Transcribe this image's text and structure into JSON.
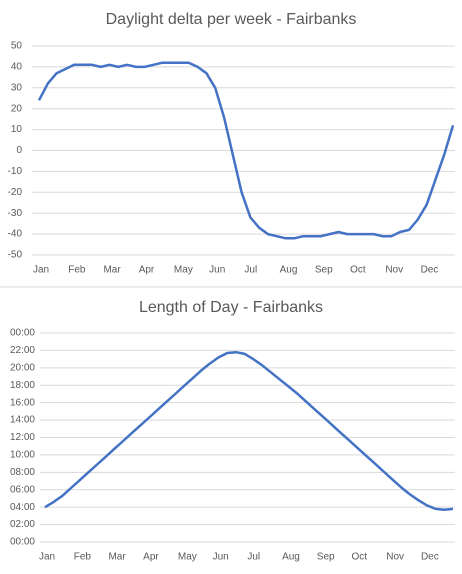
{
  "chart_data": [
    {
      "type": "line",
      "title": "Daylight delta per week - Fairbanks",
      "categories": [
        "Jan",
        null,
        null,
        null,
        "Feb",
        null,
        null,
        null,
        "Mar",
        null,
        null,
        null,
        "Apr",
        null,
        null,
        null,
        "May",
        null,
        null,
        null,
        "Jun",
        null,
        null,
        null,
        "Jul",
        null,
        null,
        null,
        "Aug",
        null,
        null,
        null,
        "Sep",
        null,
        null,
        null,
        "Oct",
        null,
        null,
        null,
        "Nov",
        null,
        null,
        null,
        "Dec",
        null,
        null,
        null
      ],
      "values": [
        24,
        32,
        37,
        39,
        41,
        41,
        41,
        40,
        41,
        40,
        41,
        40,
        40,
        41,
        42,
        42,
        42,
        42,
        40,
        37,
        30,
        16,
        -2,
        -20,
        -32,
        -37,
        -40,
        -41,
        -42,
        -42,
        -41,
        -41,
        -41,
        -40,
        -39,
        -40,
        -40,
        -40,
        -40,
        -41,
        -41,
        -39,
        -38,
        -33,
        -26,
        -14,
        -2,
        12
      ],
      "color": "#4472c4",
      "ylim": [
        -50,
        50
      ],
      "yticks": [
        -50,
        -40,
        -30,
        -20,
        -10,
        0,
        10,
        20,
        30,
        40,
        50
      ],
      "grid": true
    },
    {
      "type": "line",
      "title": "Length of Day - Fairbanks",
      "categories": [
        "Jan",
        null,
        null,
        null,
        "Feb",
        null,
        null,
        null,
        "Mar",
        null,
        null,
        null,
        "Apr",
        null,
        null,
        null,
        "May",
        null,
        null,
        null,
        "Jun",
        null,
        null,
        null,
        "Jul",
        null,
        null,
        null,
        "Aug",
        null,
        null,
        null,
        "Sep",
        null,
        null,
        null,
        "Oct",
        null,
        null,
        null,
        "Nov",
        null,
        null,
        null,
        "Dec",
        null,
        null,
        null
      ],
      "values": [
        4.0,
        4.6,
        5.3,
        6.2,
        7.1,
        8.0,
        8.9,
        9.8,
        10.7,
        11.6,
        12.5,
        13.4,
        14.3,
        15.2,
        16.1,
        17.0,
        17.9,
        18.8,
        19.7,
        20.5,
        21.2,
        21.7,
        21.8,
        21.6,
        21.0,
        20.3,
        19.5,
        18.7,
        17.9,
        17.1,
        16.2,
        15.3,
        14.4,
        13.5,
        12.6,
        11.7,
        10.8,
        9.9,
        9.0,
        8.1,
        7.2,
        6.3,
        5.5,
        4.8,
        4.2,
        3.8,
        3.7,
        3.8
      ],
      "color": "#4472c4",
      "ylim": [
        0,
        24
      ],
      "yticks": [
        {
          "value": 0,
          "label": "00:00"
        },
        {
          "value": 2,
          "label": "02:00"
        },
        {
          "value": 4,
          "label": "04:00"
        },
        {
          "value": 6,
          "label": "06:00"
        },
        {
          "value": 8,
          "label": "08:00"
        },
        {
          "value": 10,
          "label": "10:00"
        },
        {
          "value": 12,
          "label": "12:00"
        },
        {
          "value": 14,
          "label": "14:00"
        },
        {
          "value": 16,
          "label": "16:00"
        },
        {
          "value": 18,
          "label": "18:00"
        },
        {
          "value": 20,
          "label": "20:00"
        },
        {
          "value": 22,
          "label": "22:00"
        },
        {
          "value": 24,
          "label": "00:00"
        }
      ],
      "grid": true
    }
  ]
}
